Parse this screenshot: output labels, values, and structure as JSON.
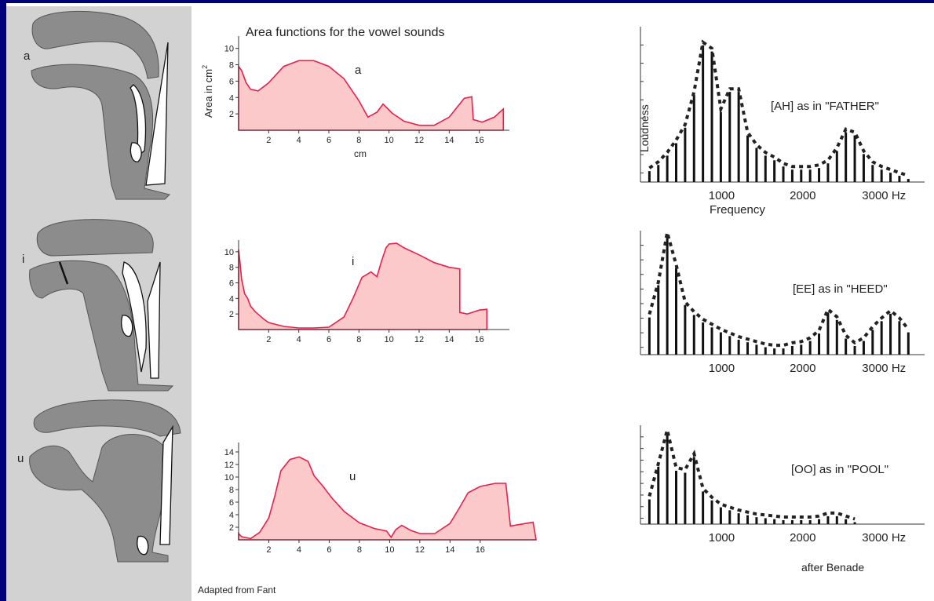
{
  "title": "Area functions for the vowel sounds",
  "credits": {
    "fant": "Adapted from Fant",
    "benade": "after Benade"
  },
  "vowels": [
    {
      "symbol": "a",
      "spectrum_label": "[AH] as in \"FATHER\""
    },
    {
      "symbol": "i",
      "spectrum_label": "[EE] as in \"HEED\""
    },
    {
      "symbol": "u",
      "spectrum_label": "[OO] as in \"POOL\""
    }
  ],
  "area_axes": {
    "ylabel": "Area in cm",
    "ylabel_sup": "2",
    "xlabel": "cm"
  },
  "spectrum_axes": {
    "ylabel": "Loudness",
    "xlabel": "Frequency",
    "ticks": [
      "1000",
      "2000",
      "3000 Hz"
    ]
  },
  "colors": {
    "area_fill": "#fbc9c9",
    "area_stroke": "#e8204a",
    "tract": "#8c8c8c",
    "background": "#00007a"
  },
  "chart_data": [
    {
      "type": "area",
      "name": "a",
      "xticks": [
        2,
        4,
        6,
        8,
        10,
        12,
        14,
        16
      ],
      "yticks": [
        2,
        4,
        6,
        8,
        10
      ],
      "xlim": [
        0,
        18
      ],
      "ylim": [
        0,
        11.5
      ],
      "x": [
        0,
        0.2,
        0.5,
        0.8,
        1.3,
        2,
        3,
        4,
        5,
        6,
        7,
        8,
        8.6,
        9.2,
        9.6,
        10.2,
        11,
        12,
        13,
        14,
        15,
        15.5,
        15.6,
        16.2,
        17,
        17.6,
        17.6
      ],
      "y": [
        7.8,
        7.3,
        5.8,
        5.0,
        4.8,
        5.8,
        7.8,
        8.5,
        8.5,
        7.8,
        6.3,
        3.6,
        1.6,
        2.2,
        3.2,
        2.1,
        1.1,
        0.6,
        0.6,
        1.6,
        3.9,
        4.1,
        1.3,
        1.0,
        1.6,
        2.6,
        0
      ]
    },
    {
      "type": "area",
      "name": "i",
      "xticks": [
        2,
        4,
        6,
        8,
        10,
        12,
        14,
        16
      ],
      "yticks": [
        2,
        4,
        6,
        8,
        10
      ],
      "xlim": [
        0,
        18
      ],
      "ylim": [
        0,
        11.5
      ],
      "x": [
        0,
        0.1,
        0.2,
        0.4,
        0.6,
        0.8,
        1.1,
        1.4,
        1.7,
        2,
        3,
        4,
        5,
        6,
        7,
        7.6,
        8.2,
        8.8,
        9.2,
        9.5,
        9.8,
        10,
        10.5,
        11,
        12,
        13,
        14,
        14.7,
        14.7,
        15.2,
        16,
        16.5,
        16.5
      ],
      "y": [
        10.3,
        8.5,
        6.5,
        4.6,
        4.0,
        3.0,
        2.3,
        1.8,
        1.3,
        0.9,
        0.4,
        0.2,
        0.2,
        0.3,
        1.6,
        4.0,
        6.7,
        7.4,
        6.8,
        8.8,
        10.5,
        11.0,
        11.1,
        10.5,
        9.6,
        8.6,
        8.0,
        7.8,
        2.2,
        2.0,
        2.5,
        2.6,
        0
      ]
    },
    {
      "type": "area",
      "name": "u",
      "xticks": [
        2,
        4,
        6,
        8,
        10,
        12,
        14,
        16
      ],
      "yticks": [
        2,
        4,
        6,
        8,
        10,
        12,
        14
      ],
      "xlim": [
        0,
        19.7
      ],
      "ylim": [
        0,
        15.5
      ],
      "x": [
        0,
        0.2,
        0.8,
        1.4,
        2.0,
        2.4,
        2.8,
        3.4,
        4.0,
        4.6,
        5.0,
        5.6,
        6.2,
        7,
        8,
        9,
        9.8,
        10.1,
        10.4,
        10.8,
        11.4,
        12,
        13,
        14,
        14.6,
        15.2,
        16,
        17,
        17.7,
        18,
        19.5,
        19.7
      ],
      "y": [
        1.0,
        0.5,
        0.2,
        1.2,
        3.5,
        7.0,
        11.0,
        12.8,
        13.2,
        12.5,
        10.2,
        8.5,
        6.6,
        4.5,
        2.7,
        1.8,
        1.4,
        0.4,
        1.6,
        2.3,
        1.5,
        1.0,
        1.0,
        2.6,
        5.0,
        7.5,
        8.5,
        9.0,
        9.0,
        2.2,
        2.8,
        0
      ]
    },
    {
      "type": "bar",
      "name": "[AH] as in \"FATHER\"",
      "xlabel": "Frequency",
      "ylabel": "Loudness",
      "xticks": [
        1000,
        2000,
        3000
      ],
      "x": [
        110,
        220,
        330,
        440,
        550,
        660,
        770,
        880,
        990,
        1100,
        1210,
        1320,
        1430,
        1540,
        1650,
        1760,
        1870,
        1980,
        2090,
        2200,
        2310,
        2420,
        2530,
        2640,
        2750,
        2860,
        2970,
        3080,
        3190,
        3300
      ],
      "values": [
        0.07,
        0.11,
        0.17,
        0.25,
        0.35,
        0.56,
        0.88,
        0.84,
        0.45,
        0.58,
        0.58,
        0.3,
        0.22,
        0.17,
        0.14,
        0.1,
        0.08,
        0.08,
        0.08,
        0.09,
        0.12,
        0.2,
        0.32,
        0.3,
        0.18,
        0.11,
        0.08,
        0.06,
        0.04,
        0.02
      ]
    },
    {
      "type": "bar",
      "name": "[EE] as in \"HEED\"",
      "xticks": [
        1000,
        2000,
        3000
      ],
      "x": [
        110,
        220,
        330,
        440,
        550,
        660,
        770,
        880,
        990,
        1100,
        1210,
        1320,
        1430,
        1540,
        1650,
        1760,
        1870,
        1980,
        2090,
        2200,
        2310,
        2420,
        2530,
        2640,
        2750,
        2860,
        2970,
        3080,
        3190,
        3300
      ],
      "values": [
        0.3,
        0.56,
        0.96,
        0.7,
        0.4,
        0.32,
        0.26,
        0.22,
        0.18,
        0.15,
        0.12,
        0.1,
        0.08,
        0.06,
        0.05,
        0.05,
        0.07,
        0.08,
        0.11,
        0.17,
        0.34,
        0.28,
        0.13,
        0.07,
        0.11,
        0.2,
        0.27,
        0.33,
        0.27,
        0.18
      ]
    },
    {
      "type": "bar",
      "name": "[OO] as in \"POOL\"",
      "xticks": [
        1000,
        2000,
        3000
      ],
      "x": [
        110,
        220,
        330,
        440,
        550,
        660,
        770,
        880,
        990,
        1100,
        1210,
        1320,
        1430,
        1540,
        1650,
        1760,
        1870,
        1980,
        2090,
        2200,
        2310,
        2420,
        2530,
        2640
      ],
      "values": [
        0.25,
        0.58,
        0.92,
        0.54,
        0.52,
        0.68,
        0.33,
        0.24,
        0.17,
        0.14,
        0.11,
        0.09,
        0.07,
        0.06,
        0.05,
        0.04,
        0.04,
        0.04,
        0.04,
        0.05,
        0.08,
        0.08,
        0.05,
        0.02
      ]
    }
  ]
}
